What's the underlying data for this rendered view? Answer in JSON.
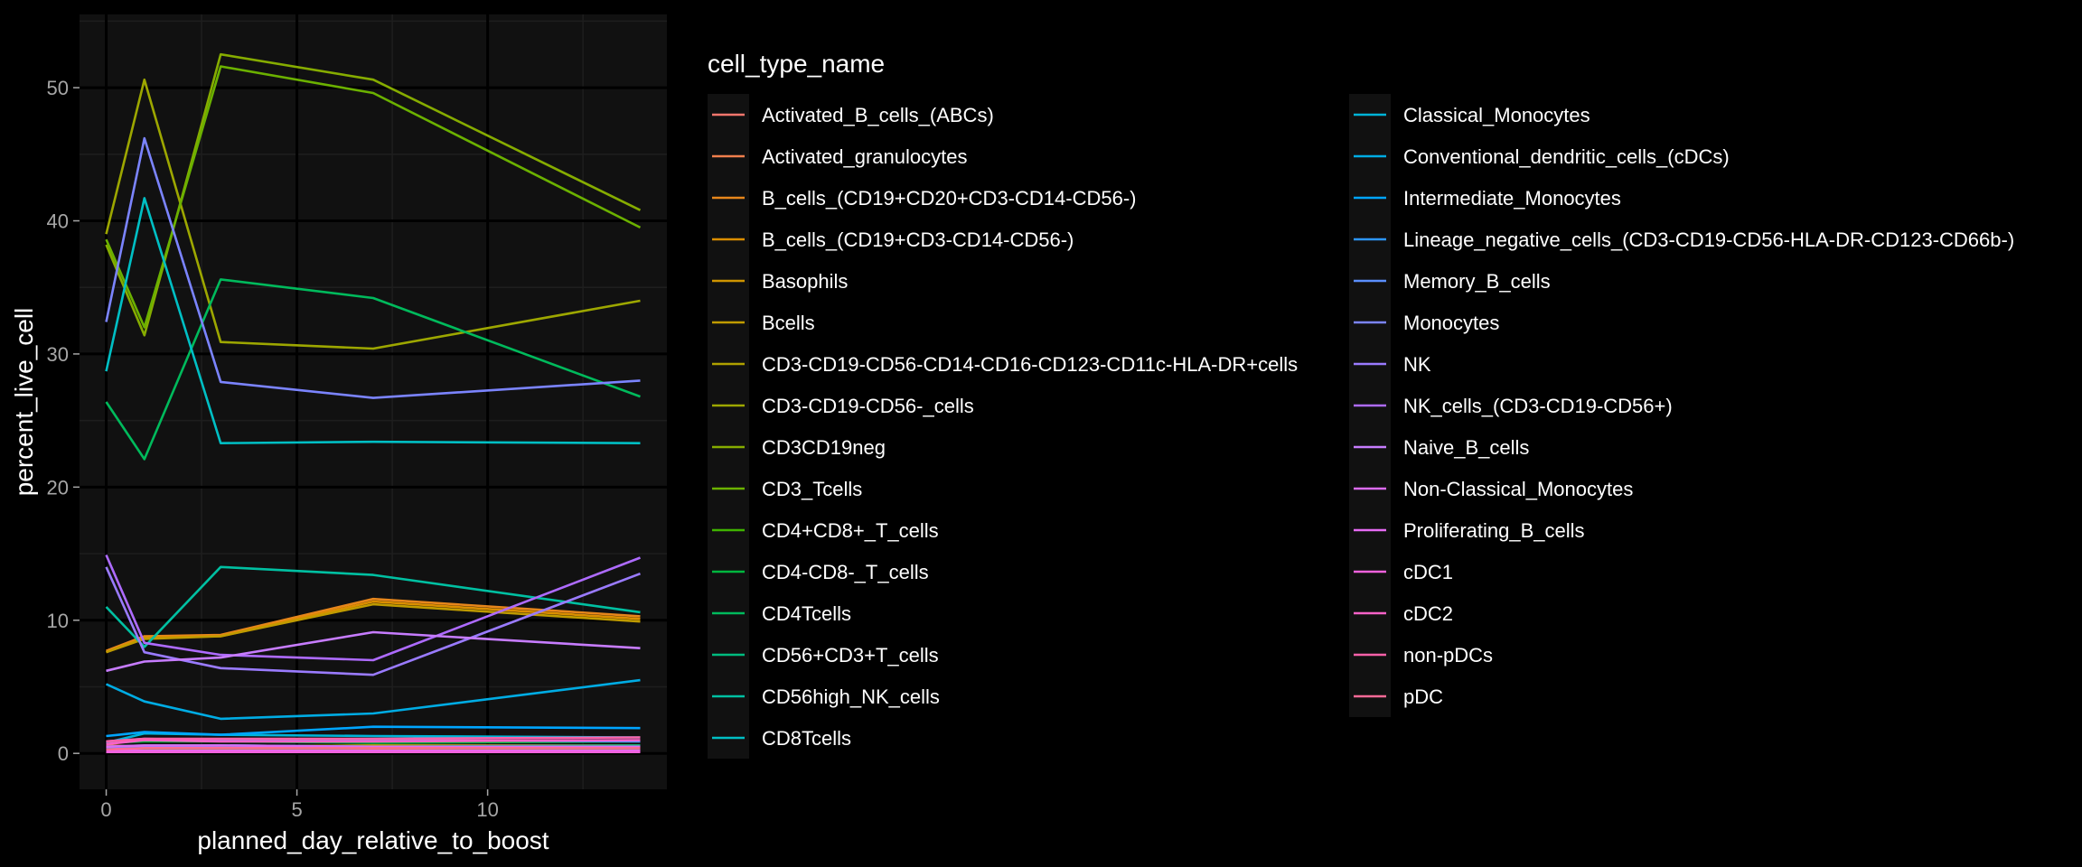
{
  "chart_data": {
    "type": "line",
    "xlabel": "planned_day_relative_to_boost",
    "ylabel": "percent_live_cell",
    "xlim": [
      -0.7,
      14.7
    ],
    "ylim": [
      -2.7,
      55.5
    ],
    "xticks": [
      0,
      5,
      10
    ],
    "yticks": [
      0,
      10,
      20,
      30,
      40,
      50
    ],
    "x": [
      0,
      1,
      3,
      7,
      14
    ],
    "grid": true,
    "theme": "dark",
    "panel_color": "#111111",
    "legend_title": "cell_type_name",
    "legend_position": "right",
    "series": [
      {
        "name": "Activated_B_cells_(ABCs)",
        "color": "#F8766D",
        "values": [
          0.3,
          0.4,
          0.4,
          0.4,
          0.4
        ]
      },
      {
        "name": "Activated_granulocytes",
        "color": "#F07F4D",
        "values": [
          0.6,
          0.5,
          0.5,
          0.6,
          0.6
        ]
      },
      {
        "name": "B_cells_(CD19+CD20+CD3-CD14-CD56-)",
        "color": "#E7861B",
        "values": [
          7.7,
          8.8,
          8.9,
          11.6,
          10.3
        ]
      },
      {
        "name": "B_cells_(CD19+CD3-CD14-CD56-)",
        "color": "#DB8E00",
        "values": [
          7.6,
          8.7,
          8.8,
          11.4,
          10.1
        ]
      },
      {
        "name": "Basophils",
        "color": "#CF9400",
        "values": [
          0.2,
          0.2,
          0.3,
          0.3,
          0.2
        ]
      },
      {
        "name": "Bcells",
        "color": "#C09B00",
        "values": [
          7.6,
          8.6,
          8.8,
          11.2,
          9.9
        ]
      },
      {
        "name": "CD3-CD19-CD56-CD14-CD16-CD123-CD11c-HLA-DR+cells",
        "color": "#AFA100",
        "values": [
          0.4,
          0.5,
          0.5,
          0.6,
          0.5
        ]
      },
      {
        "name": "CD3-CD19-CD56-_cells",
        "color": "#9DA700",
        "values": [
          39.0,
          50.6,
          30.9,
          30.4,
          34.0
        ]
      },
      {
        "name": "CD3CD19neg",
        "color": "#86AC00",
        "values": [
          38.2,
          31.4,
          52.5,
          50.6,
          40.8
        ]
      },
      {
        "name": "CD3_Tcells",
        "color": "#6BB100",
        "values": [
          38.6,
          32.0,
          51.6,
          49.6,
          39.5
        ]
      },
      {
        "name": "CD4+CD8+_T_cells",
        "color": "#3FB300",
        "values": [
          0.3,
          0.3,
          0.3,
          0.2,
          0.3
        ]
      },
      {
        "name": "CD4-CD8-_T_cells",
        "color": "#00B73E",
        "values": [
          0.8,
          0.9,
          0.9,
          0.8,
          0.9
        ]
      },
      {
        "name": "CD4Tcells",
        "color": "#00BA5C",
        "values": [
          26.4,
          22.1,
          35.6,
          34.2,
          26.8
        ]
      },
      {
        "name": "CD56+CD3+T_cells",
        "color": "#00BC7F",
        "values": [
          0.5,
          0.6,
          0.6,
          0.5,
          0.6
        ]
      },
      {
        "name": "CD56high_NK_cells",
        "color": "#00C0A2",
        "values": [
          11.0,
          8.0,
          14.0,
          13.4,
          10.6
        ]
      },
      {
        "name": "CD8Tcells",
        "color": "#00BFC4",
        "values": [
          28.7,
          41.7,
          23.3,
          23.4,
          23.3
        ]
      },
      {
        "name": "Classical_Monocytes",
        "color": "#00B4D8",
        "values": [
          0.8,
          1.5,
          1.4,
          1.3,
          1.2
        ]
      },
      {
        "name": "Conventional_dendritic_cells_(cDCs)",
        "color": "#00ACE4",
        "values": [
          5.2,
          3.9,
          2.6,
          3.0,
          5.5
        ]
      },
      {
        "name": "Intermediate_Monocytes",
        "color": "#00A5FF",
        "values": [
          1.3,
          1.6,
          1.4,
          2.0,
          1.9
        ]
      },
      {
        "name": "Lineage_negative_cells_(CD3-CD19-CD56-HLA-DR-CD123-CD66b-)",
        "color": "#2D96FF",
        "values": [
          0.4,
          0.5,
          0.6,
          0.5,
          0.4
        ]
      },
      {
        "name": "Memory_B_cells",
        "color": "#5B8FFF",
        "values": [
          0.9,
          1.1,
          1.0,
          1.0,
          0.9
        ]
      },
      {
        "name": "Monocytes",
        "color": "#7B84FF",
        "values": [
          32.4,
          46.2,
          27.9,
          26.7,
          28.0
        ]
      },
      {
        "name": "NK",
        "color": "#9A7BFF",
        "values": [
          14.0,
          7.6,
          6.4,
          5.9,
          13.5
        ]
      },
      {
        "name": "NK_cells_(CD3-CD19-CD56+)",
        "color": "#AE6BFF",
        "values": [
          14.9,
          8.3,
          7.4,
          7.0,
          14.7
        ]
      },
      {
        "name": "Naive_B_cells",
        "color": "#C77CFF",
        "values": [
          6.2,
          6.9,
          7.2,
          9.1,
          7.9
        ]
      },
      {
        "name": "Non-Classical_Monocytes",
        "color": "#DC6BF5",
        "values": [
          0.5,
          0.6,
          0.6,
          0.5,
          0.5
        ]
      },
      {
        "name": "Proliferating_B_cells",
        "color": "#E76BF3",
        "values": [
          0.2,
          0.2,
          0.2,
          0.2,
          0.2
        ]
      },
      {
        "name": "cDC1",
        "color": "#F262DD",
        "values": [
          0.1,
          0.1,
          0.1,
          0.1,
          0.1
        ]
      },
      {
        "name": "cDC2",
        "color": "#FA62C8",
        "values": [
          0.7,
          1.0,
          0.9,
          0.9,
          1.0
        ]
      },
      {
        "name": "non-pDCs",
        "color": "#FD61A9",
        "values": [
          0.9,
          1.1,
          1.1,
          1.1,
          1.2
        ]
      },
      {
        "name": "pDC",
        "color": "#FF6A98",
        "values": [
          0.3,
          0.4,
          0.4,
          0.4,
          0.4
        ]
      }
    ]
  }
}
